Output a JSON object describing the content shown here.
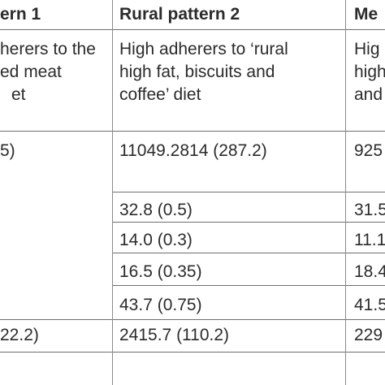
{
  "table": {
    "columns": [
      {
        "header": "ern 1",
        "description": [
          "herers to the",
          "ed meat",
          "et"
        ],
        "values": [
          "5)",
          "",
          "",
          "",
          "",
          "22.2)"
        ]
      },
      {
        "header": "Rural pattern 2",
        "description": [
          "High adherers to ‘rural",
          "high fat, biscuits and",
          "coffee’ diet"
        ],
        "values": [
          "11049.2814 (287.2)",
          "32.8 (0.5)",
          "14.0 (0.3)",
          "16.5 (0.35)",
          "43.7 (0.75)",
          "2415.7 (110.2)"
        ]
      },
      {
        "header": "Me",
        "description": [
          "Hig",
          "high",
          "and"
        ],
        "values": [
          "925",
          "31.5",
          "11.1",
          "18.4",
          "41.5",
          "229"
        ]
      }
    ]
  }
}
